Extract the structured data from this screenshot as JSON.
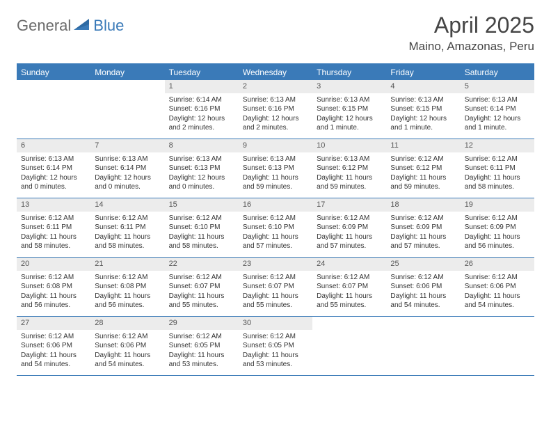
{
  "brand": {
    "word1": "General",
    "word2": "Blue"
  },
  "title": "April 2025",
  "location": "Maino, Amazonas, Peru",
  "colors": {
    "accent": "#3a7ab8",
    "header_text": "#ffffff",
    "daynum_bg": "#ececec",
    "body_text": "#333333",
    "title_text": "#454545",
    "logo_gray": "#6a6a6a",
    "background": "#ffffff"
  },
  "fonts": {
    "title_pt": 32,
    "location_pt": 17,
    "header_pt": 12,
    "daynum_pt": 11,
    "body_pt": 10
  },
  "day_headers": [
    "Sunday",
    "Monday",
    "Tuesday",
    "Wednesday",
    "Thursday",
    "Friday",
    "Saturday"
  ],
  "weeks": [
    [
      null,
      null,
      {
        "n": "1",
        "sunrise": "Sunrise: 6:14 AM",
        "sunset": "Sunset: 6:16 PM",
        "daylight": "Daylight: 12 hours and 2 minutes."
      },
      {
        "n": "2",
        "sunrise": "Sunrise: 6:13 AM",
        "sunset": "Sunset: 6:16 PM",
        "daylight": "Daylight: 12 hours and 2 minutes."
      },
      {
        "n": "3",
        "sunrise": "Sunrise: 6:13 AM",
        "sunset": "Sunset: 6:15 PM",
        "daylight": "Daylight: 12 hours and 1 minute."
      },
      {
        "n": "4",
        "sunrise": "Sunrise: 6:13 AM",
        "sunset": "Sunset: 6:15 PM",
        "daylight": "Daylight: 12 hours and 1 minute."
      },
      {
        "n": "5",
        "sunrise": "Sunrise: 6:13 AM",
        "sunset": "Sunset: 6:14 PM",
        "daylight": "Daylight: 12 hours and 1 minute."
      }
    ],
    [
      {
        "n": "6",
        "sunrise": "Sunrise: 6:13 AM",
        "sunset": "Sunset: 6:14 PM",
        "daylight": "Daylight: 12 hours and 0 minutes."
      },
      {
        "n": "7",
        "sunrise": "Sunrise: 6:13 AM",
        "sunset": "Sunset: 6:14 PM",
        "daylight": "Daylight: 12 hours and 0 minutes."
      },
      {
        "n": "8",
        "sunrise": "Sunrise: 6:13 AM",
        "sunset": "Sunset: 6:13 PM",
        "daylight": "Daylight: 12 hours and 0 minutes."
      },
      {
        "n": "9",
        "sunrise": "Sunrise: 6:13 AM",
        "sunset": "Sunset: 6:13 PM",
        "daylight": "Daylight: 11 hours and 59 minutes."
      },
      {
        "n": "10",
        "sunrise": "Sunrise: 6:13 AM",
        "sunset": "Sunset: 6:12 PM",
        "daylight": "Daylight: 11 hours and 59 minutes."
      },
      {
        "n": "11",
        "sunrise": "Sunrise: 6:12 AM",
        "sunset": "Sunset: 6:12 PM",
        "daylight": "Daylight: 11 hours and 59 minutes."
      },
      {
        "n": "12",
        "sunrise": "Sunrise: 6:12 AM",
        "sunset": "Sunset: 6:11 PM",
        "daylight": "Daylight: 11 hours and 58 minutes."
      }
    ],
    [
      {
        "n": "13",
        "sunrise": "Sunrise: 6:12 AM",
        "sunset": "Sunset: 6:11 PM",
        "daylight": "Daylight: 11 hours and 58 minutes."
      },
      {
        "n": "14",
        "sunrise": "Sunrise: 6:12 AM",
        "sunset": "Sunset: 6:11 PM",
        "daylight": "Daylight: 11 hours and 58 minutes."
      },
      {
        "n": "15",
        "sunrise": "Sunrise: 6:12 AM",
        "sunset": "Sunset: 6:10 PM",
        "daylight": "Daylight: 11 hours and 58 minutes."
      },
      {
        "n": "16",
        "sunrise": "Sunrise: 6:12 AM",
        "sunset": "Sunset: 6:10 PM",
        "daylight": "Daylight: 11 hours and 57 minutes."
      },
      {
        "n": "17",
        "sunrise": "Sunrise: 6:12 AM",
        "sunset": "Sunset: 6:09 PM",
        "daylight": "Daylight: 11 hours and 57 minutes."
      },
      {
        "n": "18",
        "sunrise": "Sunrise: 6:12 AM",
        "sunset": "Sunset: 6:09 PM",
        "daylight": "Daylight: 11 hours and 57 minutes."
      },
      {
        "n": "19",
        "sunrise": "Sunrise: 6:12 AM",
        "sunset": "Sunset: 6:09 PM",
        "daylight": "Daylight: 11 hours and 56 minutes."
      }
    ],
    [
      {
        "n": "20",
        "sunrise": "Sunrise: 6:12 AM",
        "sunset": "Sunset: 6:08 PM",
        "daylight": "Daylight: 11 hours and 56 minutes."
      },
      {
        "n": "21",
        "sunrise": "Sunrise: 6:12 AM",
        "sunset": "Sunset: 6:08 PM",
        "daylight": "Daylight: 11 hours and 56 minutes."
      },
      {
        "n": "22",
        "sunrise": "Sunrise: 6:12 AM",
        "sunset": "Sunset: 6:07 PM",
        "daylight": "Daylight: 11 hours and 55 minutes."
      },
      {
        "n": "23",
        "sunrise": "Sunrise: 6:12 AM",
        "sunset": "Sunset: 6:07 PM",
        "daylight": "Daylight: 11 hours and 55 minutes."
      },
      {
        "n": "24",
        "sunrise": "Sunrise: 6:12 AM",
        "sunset": "Sunset: 6:07 PM",
        "daylight": "Daylight: 11 hours and 55 minutes."
      },
      {
        "n": "25",
        "sunrise": "Sunrise: 6:12 AM",
        "sunset": "Sunset: 6:06 PM",
        "daylight": "Daylight: 11 hours and 54 minutes."
      },
      {
        "n": "26",
        "sunrise": "Sunrise: 6:12 AM",
        "sunset": "Sunset: 6:06 PM",
        "daylight": "Daylight: 11 hours and 54 minutes."
      }
    ],
    [
      {
        "n": "27",
        "sunrise": "Sunrise: 6:12 AM",
        "sunset": "Sunset: 6:06 PM",
        "daylight": "Daylight: 11 hours and 54 minutes."
      },
      {
        "n": "28",
        "sunrise": "Sunrise: 6:12 AM",
        "sunset": "Sunset: 6:06 PM",
        "daylight": "Daylight: 11 hours and 54 minutes."
      },
      {
        "n": "29",
        "sunrise": "Sunrise: 6:12 AM",
        "sunset": "Sunset: 6:05 PM",
        "daylight": "Daylight: 11 hours and 53 minutes."
      },
      {
        "n": "30",
        "sunrise": "Sunrise: 6:12 AM",
        "sunset": "Sunset: 6:05 PM",
        "daylight": "Daylight: 11 hours and 53 minutes."
      },
      null,
      null,
      null
    ]
  ]
}
